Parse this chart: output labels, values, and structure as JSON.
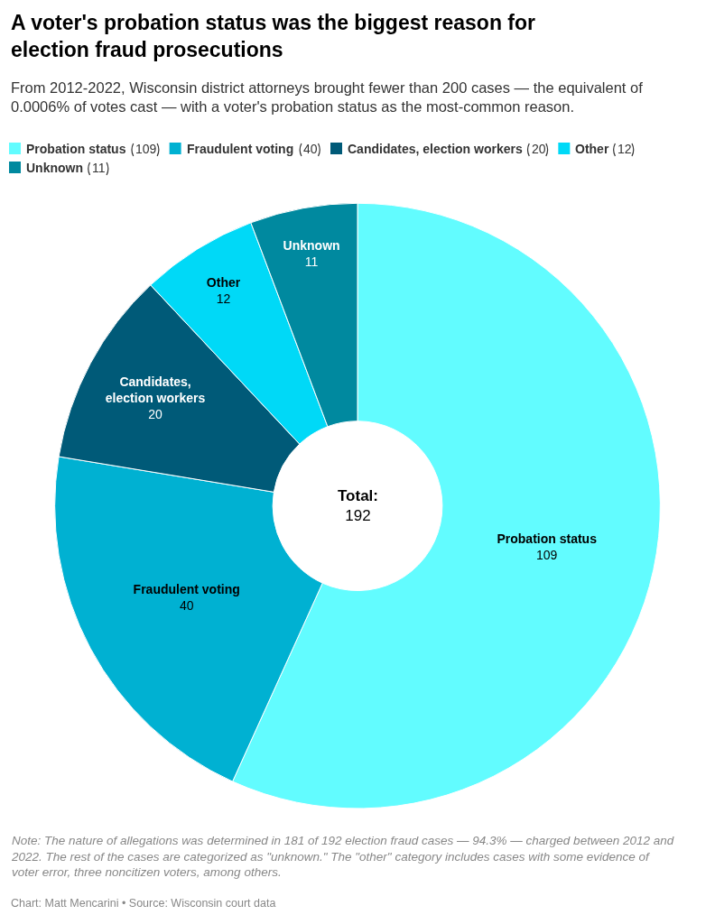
{
  "chart_data": {
    "type": "donut",
    "title": "A voter's probation status was the biggest reason for election fraud prosecutions",
    "subtitle": "From 2012-2022, Wisconsin district attorneys brought fewer than 200 cases — the equivalent of 0.0006% of votes cast — with a voter's probation status as the most-common reason.",
    "categories": [
      "Probation status",
      "Fraudulent voting",
      "Candidates, election workers",
      "Other",
      "Unknown"
    ],
    "values": [
      109,
      40,
      20,
      12,
      11
    ],
    "colors": [
      "#62fcff",
      "#00b1d2",
      "#005a78",
      "#00d9f7",
      "#00899f"
    ],
    "data_labels": true,
    "value_labels": [
      "109",
      "40",
      "20",
      "12",
      "11"
    ],
    "legend": "top left",
    "annotations": [
      "Total:\n192",
      "Note: The nature of allegations was determined in 181 of 192 election fraud cases — 94.3% — charged between 2012 and 2022. The rest of the cases are categorized as \"unknown.\" The \"other\" category includes cases with some evidence of voter error, three noncitizen voters, among others.",
      "Chart: Matt Mencarini • Source: Wisconsin court data"
    ]
  }
}
